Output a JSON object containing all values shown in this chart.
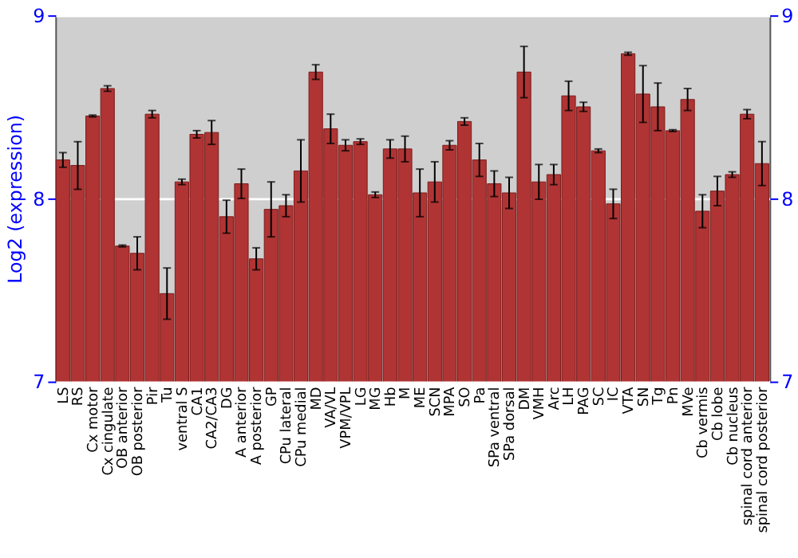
{
  "chart_data": {
    "type": "bar",
    "ylabel": "Log2 (expression)",
    "categories": [
      "LS",
      "RS",
      "Cx motor",
      "Cx cingulate",
      "OB anterior",
      "OB posterior",
      "Pir",
      "Tu",
      "ventral S",
      "CA1",
      "CA2/CA3",
      "DG",
      "A anterior",
      "A posterior",
      "GP",
      "CPu lateral",
      "CPu medial",
      "MD",
      "VA/VL",
      "VPM/VPL",
      "LG",
      "MG",
      "Hb",
      "M",
      "ME",
      "SCN",
      "MPA",
      "SO",
      "Pa",
      "SPa ventral",
      "SPa dorsal",
      "DM",
      "VMH",
      "Arc",
      "LH",
      "PAG",
      "SC",
      "IC",
      "VTA",
      "SN",
      "Tg",
      "Pn",
      "MVe",
      "Cb vermis",
      "Cb lobe",
      "Cb nucleus",
      "spinal cord anterior",
      "spinal cord posterior"
    ],
    "values": [
      8.21,
      8.18,
      8.45,
      8.6,
      7.74,
      7.7,
      8.46,
      7.48,
      8.09,
      8.35,
      8.36,
      7.9,
      8.08,
      7.67,
      7.94,
      7.96,
      8.15,
      8.69,
      8.38,
      8.29,
      8.31,
      8.02,
      8.27,
      8.27,
      8.03,
      8.09,
      8.29,
      8.42,
      8.21,
      8.08,
      8.03,
      8.69,
      8.09,
      8.13,
      8.56,
      8.5,
      8.26,
      7.97,
      8.79,
      8.57,
      8.5,
      8.37,
      8.54,
      7.93,
      8.04,
      8.13,
      8.46,
      8.19
    ],
    "errors": [
      0.04,
      0.13,
      0.005,
      0.015,
      0.005,
      0.09,
      0.02,
      0.14,
      0.015,
      0.02,
      0.065,
      0.09,
      0.08,
      0.06,
      0.15,
      0.06,
      0.17,
      0.04,
      0.08,
      0.03,
      0.015,
      0.015,
      0.05,
      0.07,
      0.13,
      0.11,
      0.025,
      0.02,
      0.09,
      0.07,
      0.085,
      0.14,
      0.095,
      0.055,
      0.08,
      0.025,
      0.01,
      0.08,
      0.008,
      0.155,
      0.13,
      0.005,
      0.06,
      0.09,
      0.08,
      0.015,
      0.025,
      0.12
    ],
    "color": "#b03434",
    "ylim": [
      7,
      9
    ],
    "yticks": [
      7,
      8,
      9
    ],
    "y2lim": [
      7,
      9
    ],
    "y2ticks": [
      7,
      8,
      9
    ],
    "grid": "y"
  }
}
